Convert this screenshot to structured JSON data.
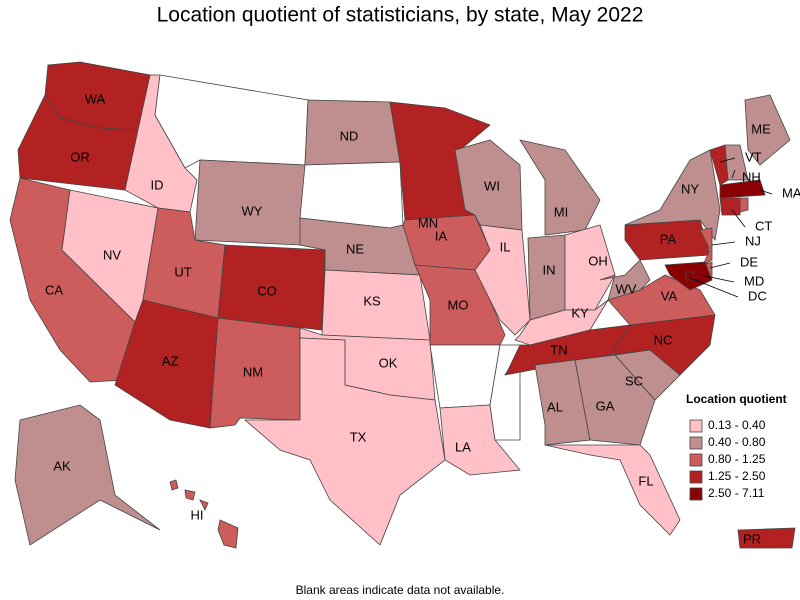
{
  "title": "Location quotient of statisticians, by state, May 2022",
  "legend": {
    "title": "Location quotient",
    "items": [
      {
        "label": "0.13 - 0.40",
        "color": "#ffc0c8"
      },
      {
        "label": "0.40 - 0.80",
        "color": "#bf8f8f"
      },
      {
        "label": "0.80 - 1.25",
        "color": "#cd5c5c"
      },
      {
        "label": "1.25 - 2.50",
        "color": "#b22222"
      },
      {
        "label": "2.50 - 7.11",
        "color": "#8b0000"
      }
    ]
  },
  "states": [
    {
      "label": "WA",
      "color": "#b22222"
    },
    {
      "label": "OR",
      "color": "#b22222"
    },
    {
      "label": "CA",
      "color": "#cd5c5c"
    },
    {
      "label": "NV",
      "color": "#ffc0c8"
    },
    {
      "label": "ID",
      "color": "#ffc0c8"
    },
    {
      "color": "#ffffff"
    },
    {
      "label": "WY",
      "color": "#bf8f8f"
    },
    {
      "label": "UT",
      "color": "#cd5c5c"
    },
    {
      "label": "CO",
      "color": "#b22222"
    },
    {
      "label": "AZ",
      "color": "#b22222"
    },
    {
      "label": "NM",
      "color": "#cd5c5c"
    },
    {
      "label": "ND",
      "color": "#bf8f8f"
    },
    {
      "color": "#ffffff"
    },
    {
      "label": "NE",
      "color": "#bf8f8f"
    },
    {
      "label": "KS",
      "color": "#ffc0c8"
    },
    {
      "label": "OK",
      "color": "#ffc0c8"
    },
    {
      "label": "TX",
      "color": "#ffc0c8"
    },
    {
      "label": "MN",
      "color": "#b22222"
    },
    {
      "label": "IA",
      "color": "#cd5c5c"
    },
    {
      "label": "MO",
      "color": "#cd5c5c"
    },
    {
      "color": "#ffffff"
    },
    {
      "label": "LA",
      "color": "#ffc0c8"
    },
    {
      "color": "#ffffff"
    },
    {
      "label": "WI",
      "color": "#bf8f8f"
    },
    {
      "label": "IL",
      "color": "#ffc0c8"
    },
    {
      "label": "MI",
      "color": "#bf8f8f"
    },
    {
      "label": "IN",
      "color": "#bf8f8f"
    },
    {
      "label": "OH",
      "color": "#ffc0c8"
    },
    {
      "label": "KY",
      "color": "#ffc0c8"
    },
    {
      "label": "TN",
      "color": "#b22222"
    },
    {
      "label": "AL",
      "color": "#bf8f8f"
    },
    {
      "label": "GA",
      "color": "#bf8f8f"
    },
    {
      "label": "FL",
      "color": "#ffc0c8"
    },
    {
      "label": "SC",
      "color": "#bf8f8f"
    },
    {
      "label": "NC",
      "color": "#b22222"
    },
    {
      "label": "VA",
      "color": "#cd5c5c"
    },
    {
      "label": "WV",
      "color": "#bf8f8f"
    },
    {
      "label": "PA",
      "color": "#b22222"
    },
    {
      "label": "NY",
      "color": "#bf8f8f"
    },
    {
      "label": "ME",
      "color": "#bf8f8f"
    },
    {
      "label": "VT",
      "color": "#b22222"
    },
    {
      "label": "NH",
      "color": "#bf8f8f"
    },
    {
      "label": "MA",
      "color": "#8b0000"
    },
    {
      "label": "CT",
      "color": "#b22222"
    },
    {
      "color": "#cd5c5c"
    },
    {
      "label": "NJ",
      "color": "#cd5c5c"
    },
    {
      "label": "DE",
      "color": "#cd5c5c"
    },
    {
      "label": "MD",
      "color": "#8b0000"
    },
    {
      "label": "DC",
      "color": "#8b0000"
    },
    {
      "label": "AK",
      "color": "#bf8f8f"
    },
    {
      "label": "HI",
      "color": "#cd5c5c"
    },
    {
      "label": "PR",
      "color": "#b22222"
    }
  ],
  "note": "Blank areas indicate data not available."
}
